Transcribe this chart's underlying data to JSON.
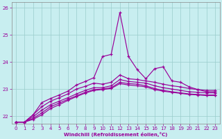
{
  "xlabel": "Windchill (Refroidissement éolien,°C)",
  "background_color": "#c8eef0",
  "line_color": "#990099",
  "grid_color": "#99cccc",
  "x_values": [
    0,
    1,
    2,
    3,
    4,
    5,
    6,
    7,
    8,
    9,
    10,
    11,
    12,
    13,
    14,
    15,
    16,
    17,
    18,
    19,
    20,
    21,
    22,
    23
  ],
  "ylim": [
    21.72,
    26.2
  ],
  "xlim": [
    -0.5,
    23.5
  ],
  "yticks": [
    22,
    23,
    24,
    25,
    26
  ],
  "xticks": [
    0,
    1,
    2,
    3,
    4,
    5,
    6,
    7,
    8,
    9,
    10,
    11,
    12,
    13,
    14,
    15,
    16,
    17,
    18,
    19,
    20,
    21,
    22,
    23
  ],
  "curve_spike": [
    21.78,
    21.78,
    22.05,
    22.5,
    22.65,
    22.78,
    22.92,
    23.15,
    23.28,
    23.42,
    24.2,
    24.28,
    25.82,
    24.2,
    23.72,
    23.38,
    23.75,
    23.82,
    23.3,
    23.25,
    23.08,
    22.98,
    22.9,
    22.9
  ],
  "curve_a": [
    21.78,
    21.78,
    22.05,
    22.35,
    22.55,
    22.68,
    22.82,
    23.0,
    23.1,
    23.22,
    23.18,
    23.25,
    23.52,
    23.38,
    23.35,
    23.3,
    23.25,
    23.18,
    23.12,
    23.08,
    23.02,
    22.98,
    22.95,
    22.95
  ],
  "curve_b": [
    21.78,
    21.78,
    21.98,
    22.22,
    22.42,
    22.55,
    22.68,
    22.82,
    22.95,
    23.05,
    23.05,
    23.12,
    23.35,
    23.28,
    23.25,
    23.22,
    23.12,
    23.05,
    23.0,
    22.95,
    22.9,
    22.88,
    22.86,
    22.86
  ],
  "curve_c": [
    21.78,
    21.78,
    21.92,
    22.12,
    22.35,
    22.48,
    22.62,
    22.75,
    22.88,
    22.98,
    23.0,
    23.05,
    23.25,
    23.2,
    23.18,
    23.12,
    23.02,
    22.95,
    22.9,
    22.86,
    22.82,
    22.8,
    22.78,
    22.78
  ],
  "curve_d": [
    21.78,
    21.78,
    21.88,
    22.05,
    22.28,
    22.42,
    22.58,
    22.72,
    22.85,
    22.95,
    22.98,
    23.02,
    23.2,
    23.15,
    23.12,
    23.08,
    22.98,
    22.92,
    22.88,
    22.84,
    22.8,
    22.78,
    22.76,
    22.76
  ]
}
